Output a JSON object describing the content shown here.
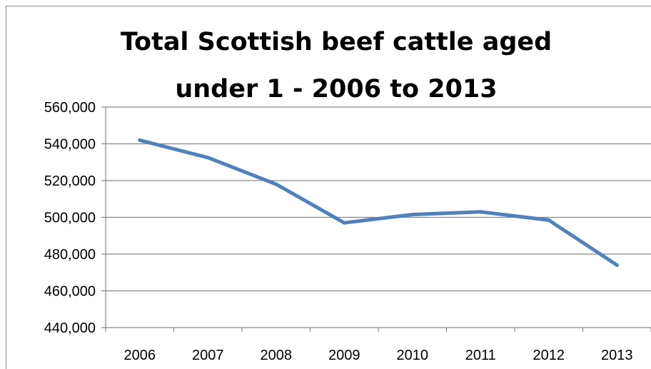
{
  "chart_data": {
    "type": "line",
    "title_lines": [
      "Total Scottish beef cattle aged",
      "under 1 - 2006 to 2013"
    ],
    "categories": [
      "2006",
      "2007",
      "2008",
      "2009",
      "2010",
      "2011",
      "2012",
      "2013"
    ],
    "series": [
      {
        "values": [
          542000,
          532500,
          518000,
          497000,
          501500,
          503000,
          498500,
          474000
        ]
      }
    ],
    "ylim": [
      440000,
      560000
    ],
    "yticks": [
      440000,
      460000,
      480000,
      500000,
      520000,
      540000,
      560000
    ],
    "ytick_labels": [
      "440,000",
      "460,000",
      "480,000",
      "500,000",
      "520,000",
      "540,000",
      "560,000"
    ],
    "grid": true,
    "legend": "none",
    "colors": {
      "line": "#4f81bd",
      "grid": "#868686",
      "axis": "#868686"
    }
  }
}
